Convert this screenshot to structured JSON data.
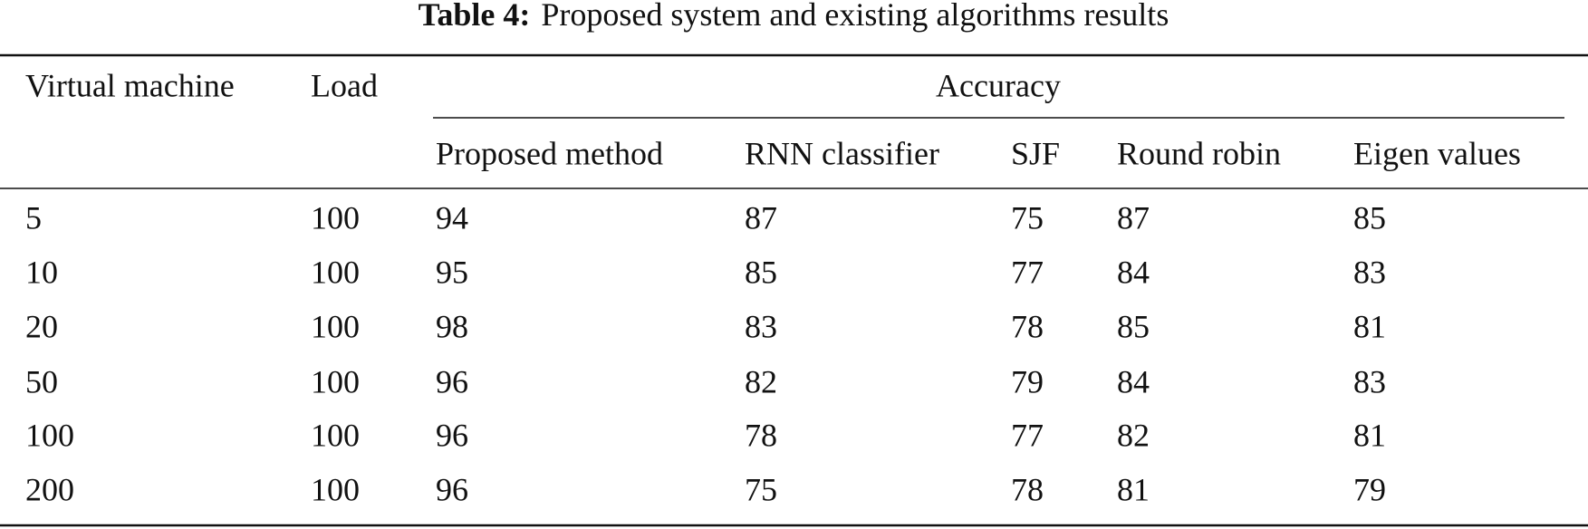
{
  "caption": {
    "label": "Table 4:",
    "text": "Proposed system and existing algorithms results"
  },
  "table": {
    "columns": [
      "Virtual machine",
      "Load"
    ],
    "group": "Accuracy",
    "subcolumns": [
      "Proposed method",
      "RNN classifier",
      "SJF",
      "Round robin",
      "Eigen values"
    ],
    "rows": [
      [
        5,
        100,
        94,
        87,
        75,
        87,
        85
      ],
      [
        10,
        100,
        95,
        85,
        77,
        84,
        83
      ],
      [
        20,
        100,
        98,
        83,
        78,
        85,
        81
      ],
      [
        50,
        100,
        96,
        82,
        79,
        84,
        83
      ],
      [
        100,
        100,
        96,
        78,
        77,
        82,
        81
      ],
      [
        200,
        100,
        96,
        75,
        78,
        81,
        79
      ]
    ]
  }
}
